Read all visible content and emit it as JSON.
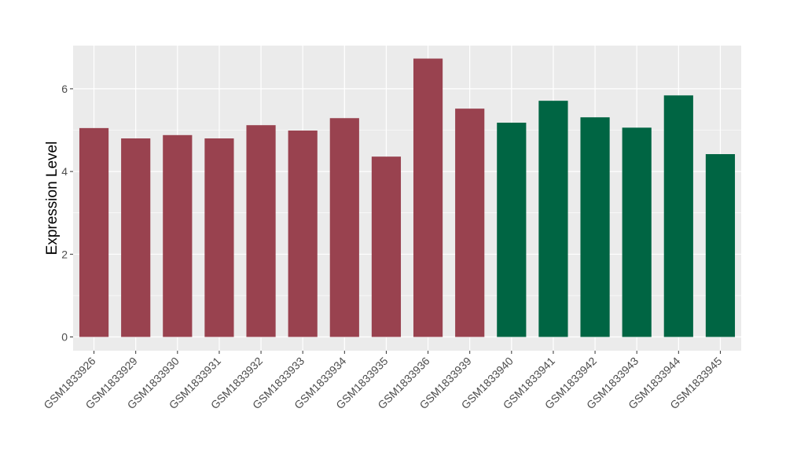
{
  "chart_data": {
    "type": "bar",
    "title": "",
    "xlabel": "",
    "ylabel": "Expression Level",
    "ylim": [
      0,
      7
    ],
    "yticks": [
      0,
      2,
      4,
      6
    ],
    "grid": true,
    "legend": "none",
    "colors": {
      "panel_background": "#ebebeb",
      "grid_major": "#ffffff",
      "group_a": "#99424f",
      "group_b": "#006543"
    },
    "categories": [
      "GSM1833926",
      "GSM1833929",
      "GSM1833930",
      "GSM1833931",
      "GSM1833932",
      "GSM1833933",
      "GSM1833934",
      "GSM1833935",
      "GSM1833936",
      "GSM1833939",
      "GSM1833940",
      "GSM1833941",
      "GSM1833942",
      "GSM1833943",
      "GSM1833944",
      "GSM1833945"
    ],
    "values": [
      5.05,
      4.8,
      4.88,
      4.8,
      5.12,
      4.99,
      5.29,
      4.36,
      6.73,
      5.52,
      5.18,
      5.71,
      5.31,
      5.06,
      5.84,
      4.42
    ],
    "bar_group": [
      "a",
      "a",
      "a",
      "a",
      "a",
      "a",
      "a",
      "a",
      "a",
      "a",
      "b",
      "b",
      "b",
      "b",
      "b",
      "b"
    ]
  }
}
